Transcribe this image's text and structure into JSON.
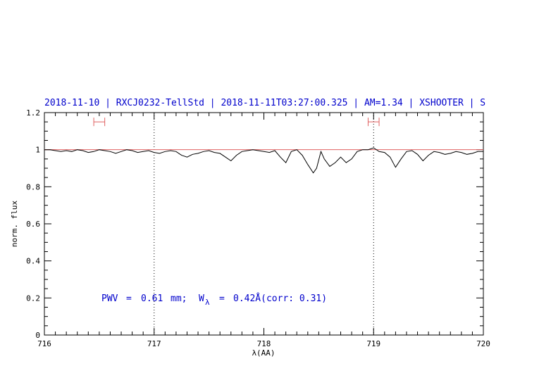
{
  "chart_data": {
    "type": "line",
    "title": "2018-11-10 | RXCJ0232-TellStd | 2018-11-11T03:27:00.325 | AM=1.34 | XSHOOTER | S",
    "xlabel": "λ(AA)",
    "ylabel": "norm. flux",
    "xlim": [
      716,
      720
    ],
    "ylim": [
      0,
      1.2
    ],
    "x_ticks": [
      "716",
      "717",
      "718",
      "719",
      "720"
    ],
    "y_ticks": [
      "0",
      "0.2",
      "0.4",
      "0.6",
      "0.8",
      "1",
      "1.2"
    ],
    "x_tick_values": [
      716,
      717,
      718,
      719,
      720
    ],
    "y_tick_values": [
      0,
      0.2,
      0.4,
      0.6,
      0.8,
      1.0,
      1.2
    ],
    "vertical_dotted_lines": [
      717,
      719
    ],
    "continuum_level": 1.0,
    "error_bars": [
      {
        "x_min": 716.45,
        "x_max": 716.55,
        "y": 1.15
      },
      {
        "x_min": 718.95,
        "x_max": 719.05,
        "y": 1.15
      }
    ],
    "annotation": {
      "pwv_label": "PWV",
      "pwv_eq": "=",
      "pwv_value": "0.61",
      "pwv_unit": "mm;",
      "w_symbol": "W",
      "w_subscript": "λ",
      "w_eq": "=",
      "w_value": "0.42Å(corr: 0.31)"
    },
    "series": [
      {
        "x": [
          716.0,
          716.05,
          716.1,
          716.15,
          716.2,
          716.25,
          716.3,
          716.35,
          716.4,
          716.45,
          716.5,
          716.55,
          716.6,
          716.65,
          716.7,
          716.75,
          716.8,
          716.85,
          716.9,
          716.95,
          717.0,
          717.05,
          717.1,
          717.15,
          717.2,
          717.25,
          717.3,
          717.35,
          717.4,
          717.45,
          717.5,
          717.55,
          717.6,
          717.65,
          717.7,
          717.75,
          717.8,
          717.85,
          717.9,
          717.95,
          718.0,
          718.05,
          718.1,
          718.15,
          718.2,
          718.25,
          718.3,
          718.35,
          718.4,
          718.45,
          718.48,
          718.52,
          718.55,
          718.6,
          718.65,
          718.7,
          718.75,
          718.8,
          718.85,
          718.9,
          718.95,
          719.0,
          719.05,
          719.1,
          719.15,
          719.2,
          719.25,
          719.3,
          719.35,
          719.4,
          719.45,
          719.5,
          719.55,
          719.6,
          719.65,
          719.7,
          719.75,
          719.8,
          719.85,
          719.9,
          719.95,
          720.0
        ],
        "y": [
          1.0,
          1.0,
          0.995,
          0.99,
          0.995,
          0.99,
          1.0,
          0.995,
          0.985,
          0.99,
          1.0,
          0.995,
          0.99,
          0.98,
          0.99,
          1.0,
          0.995,
          0.985,
          0.99,
          0.995,
          0.985,
          0.98,
          0.99,
          0.995,
          0.99,
          0.97,
          0.96,
          0.975,
          0.98,
          0.99,
          0.995,
          0.985,
          0.98,
          0.96,
          0.94,
          0.97,
          0.99,
          0.995,
          1.0,
          0.995,
          0.99,
          0.985,
          0.995,
          0.96,
          0.93,
          0.99,
          1.0,
          0.97,
          0.92,
          0.875,
          0.9,
          0.99,
          0.95,
          0.91,
          0.93,
          0.96,
          0.93,
          0.95,
          0.99,
          1.0,
          1.0,
          1.01,
          0.99,
          0.985,
          0.96,
          0.905,
          0.95,
          0.99,
          0.995,
          0.975,
          0.94,
          0.97,
          0.99,
          0.985,
          0.975,
          0.98,
          0.99,
          0.985,
          0.975,
          0.98,
          0.99,
          0.99
        ]
      }
    ]
  }
}
